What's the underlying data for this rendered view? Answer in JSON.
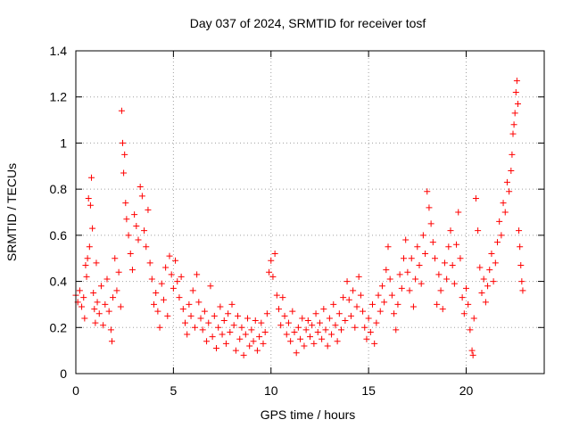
{
  "chart_data": {
    "type": "scatter",
    "title": "Day 037 of 2024, SRMTID for receiver tosf",
    "xlabel": "GPS time / hours",
    "ylabel": "SRMTID / TECUs",
    "xlim": [
      0,
      24
    ],
    "ylim": [
      0,
      1.4
    ],
    "grid": true,
    "marker": "+",
    "color": "#ff0000",
    "x_ticks": [
      0,
      5,
      10,
      15,
      20
    ],
    "x_tick_labels": [
      "0",
      "5",
      "10",
      "15",
      "20"
    ],
    "y_ticks": [
      0,
      0.2,
      0.4,
      0.6,
      0.8,
      1.0,
      1.2,
      1.4
    ],
    "y_tick_labels": [
      "0",
      "0.2",
      "0.4",
      "0.6",
      "0.8",
      "1",
      "1.2",
      "1.4"
    ],
    "series": [
      {
        "name": "SRMTID",
        "points": [
          [
            0.0,
            0.34
          ],
          [
            0.1,
            0.31
          ],
          [
            0.2,
            0.36
          ],
          [
            0.3,
            0.29
          ],
          [
            0.4,
            0.33
          ],
          [
            0.45,
            0.24
          ],
          [
            0.5,
            0.47
          ],
          [
            0.55,
            0.42
          ],
          [
            0.6,
            0.5
          ],
          [
            0.65,
            0.76
          ],
          [
            0.7,
            0.55
          ],
          [
            0.75,
            0.73
          ],
          [
            0.8,
            0.85
          ],
          [
            0.85,
            0.63
          ],
          [
            0.9,
            0.35
          ],
          [
            0.95,
            0.28
          ],
          [
            1.0,
            0.22
          ],
          [
            1.05,
            0.48
          ],
          [
            1.1,
            0.31
          ],
          [
            1.2,
            0.26
          ],
          [
            1.3,
            0.38
          ],
          [
            1.4,
            0.21
          ],
          [
            1.5,
            0.3
          ],
          [
            1.6,
            0.41
          ],
          [
            1.7,
            0.27
          ],
          [
            1.8,
            0.19
          ],
          [
            1.85,
            0.14
          ],
          [
            1.9,
            0.33
          ],
          [
            2.0,
            0.5
          ],
          [
            2.1,
            0.36
          ],
          [
            2.2,
            0.44
          ],
          [
            2.3,
            0.29
          ],
          [
            2.35,
            1.14
          ],
          [
            2.4,
            1.0
          ],
          [
            2.45,
            0.87
          ],
          [
            2.5,
            0.95
          ],
          [
            2.55,
            0.74
          ],
          [
            2.6,
            0.67
          ],
          [
            2.7,
            0.6
          ],
          [
            2.8,
            0.52
          ],
          [
            2.9,
            0.45
          ],
          [
            3.0,
            0.69
          ],
          [
            3.1,
            0.64
          ],
          [
            3.2,
            0.58
          ],
          [
            3.3,
            0.81
          ],
          [
            3.4,
            0.77
          ],
          [
            3.5,
            0.62
          ],
          [
            3.6,
            0.55
          ],
          [
            3.7,
            0.71
          ],
          [
            3.8,
            0.48
          ],
          [
            3.9,
            0.41
          ],
          [
            4.0,
            0.3
          ],
          [
            4.1,
            0.35
          ],
          [
            4.2,
            0.27
          ],
          [
            4.3,
            0.2
          ],
          [
            4.4,
            0.39
          ],
          [
            4.5,
            0.32
          ],
          [
            4.6,
            0.46
          ],
          [
            4.7,
            0.25
          ],
          [
            4.8,
            0.51
          ],
          [
            4.9,
            0.43
          ],
          [
            5.0,
            0.37
          ],
          [
            5.1,
            0.49
          ],
          [
            5.2,
            0.4
          ],
          [
            5.3,
            0.33
          ],
          [
            5.4,
            0.42
          ],
          [
            5.5,
            0.28
          ],
          [
            5.6,
            0.22
          ],
          [
            5.7,
            0.17
          ],
          [
            5.8,
            0.3
          ],
          [
            5.9,
            0.25
          ],
          [
            6.0,
            0.36
          ],
          [
            6.1,
            0.2
          ],
          [
            6.2,
            0.43
          ],
          [
            6.3,
            0.31
          ],
          [
            6.4,
            0.24
          ],
          [
            6.5,
            0.19
          ],
          [
            6.6,
            0.27
          ],
          [
            6.7,
            0.14
          ],
          [
            6.8,
            0.22
          ],
          [
            6.9,
            0.38
          ],
          [
            7.0,
            0.16
          ],
          [
            7.1,
            0.25
          ],
          [
            7.2,
            0.11
          ],
          [
            7.3,
            0.2
          ],
          [
            7.4,
            0.29
          ],
          [
            7.5,
            0.17
          ],
          [
            7.6,
            0.23
          ],
          [
            7.7,
            0.13
          ],
          [
            7.8,
            0.26
          ],
          [
            7.9,
            0.18
          ],
          [
            8.0,
            0.3
          ],
          [
            8.1,
            0.21
          ],
          [
            8.2,
            0.1
          ],
          [
            8.3,
            0.25
          ],
          [
            8.4,
            0.15
          ],
          [
            8.5,
            0.2
          ],
          [
            8.6,
            0.08
          ],
          [
            8.7,
            0.17
          ],
          [
            8.8,
            0.24
          ],
          [
            8.9,
            0.12
          ],
          [
            9.0,
            0.19
          ],
          [
            9.1,
            0.14
          ],
          [
            9.2,
            0.23
          ],
          [
            9.3,
            0.1
          ],
          [
            9.4,
            0.16
          ],
          [
            9.5,
            0.22
          ],
          [
            9.6,
            0.13
          ],
          [
            9.7,
            0.18
          ],
          [
            9.8,
            0.26
          ],
          [
            9.9,
            0.44
          ],
          [
            10.0,
            0.49
          ],
          [
            10.1,
            0.42
          ],
          [
            10.2,
            0.52
          ],
          [
            10.3,
            0.34
          ],
          [
            10.4,
            0.28
          ],
          [
            10.5,
            0.21
          ],
          [
            10.6,
            0.33
          ],
          [
            10.7,
            0.25
          ],
          [
            10.8,
            0.17
          ],
          [
            10.9,
            0.22
          ],
          [
            11.0,
            0.14
          ],
          [
            11.1,
            0.27
          ],
          [
            11.2,
            0.18
          ],
          [
            11.3,
            0.09
          ],
          [
            11.4,
            0.2
          ],
          [
            11.5,
            0.15
          ],
          [
            11.6,
            0.24
          ],
          [
            11.7,
            0.12
          ],
          [
            11.8,
            0.19
          ],
          [
            11.9,
            0.23
          ],
          [
            12.0,
            0.16
          ],
          [
            12.1,
            0.21
          ],
          [
            12.2,
            0.13
          ],
          [
            12.3,
            0.26
          ],
          [
            12.4,
            0.18
          ],
          [
            12.5,
            0.22
          ],
          [
            12.6,
            0.15
          ],
          [
            12.7,
            0.28
          ],
          [
            12.8,
            0.19
          ],
          [
            12.9,
            0.12
          ],
          [
            13.0,
            0.24
          ],
          [
            13.1,
            0.17
          ],
          [
            13.2,
            0.3
          ],
          [
            13.3,
            0.21
          ],
          [
            13.4,
            0.14
          ],
          [
            13.5,
            0.26
          ],
          [
            13.6,
            0.19
          ],
          [
            13.7,
            0.33
          ],
          [
            13.8,
            0.23
          ],
          [
            13.9,
            0.4
          ],
          [
            14.0,
            0.32
          ],
          [
            14.1,
            0.25
          ],
          [
            14.2,
            0.36
          ],
          [
            14.3,
            0.2
          ],
          [
            14.4,
            0.29
          ],
          [
            14.5,
            0.42
          ],
          [
            14.6,
            0.34
          ],
          [
            14.7,
            0.27
          ],
          [
            14.8,
            0.2
          ],
          [
            14.9,
            0.15
          ],
          [
            15.0,
            0.24
          ],
          [
            15.1,
            0.18
          ],
          [
            15.2,
            0.3
          ],
          [
            15.3,
            0.13
          ],
          [
            15.4,
            0.22
          ],
          [
            15.5,
            0.34
          ],
          [
            15.6,
            0.27
          ],
          [
            15.7,
            0.38
          ],
          [
            15.8,
            0.31
          ],
          [
            15.9,
            0.45
          ],
          [
            16.0,
            0.55
          ],
          [
            16.1,
            0.41
          ],
          [
            16.2,
            0.34
          ],
          [
            16.3,
            0.26
          ],
          [
            16.4,
            0.19
          ],
          [
            16.5,
            0.3
          ],
          [
            16.6,
            0.43
          ],
          [
            16.7,
            0.37
          ],
          [
            16.8,
            0.5
          ],
          [
            16.9,
            0.58
          ],
          [
            17.0,
            0.44
          ],
          [
            17.1,
            0.36
          ],
          [
            17.2,
            0.5
          ],
          [
            17.3,
            0.29
          ],
          [
            17.4,
            0.41
          ],
          [
            17.5,
            0.55
          ],
          [
            17.6,
            0.47
          ],
          [
            17.7,
            0.39
          ],
          [
            17.8,
            0.6
          ],
          [
            17.9,
            0.52
          ],
          [
            18.0,
            0.79
          ],
          [
            18.1,
            0.72
          ],
          [
            18.2,
            0.65
          ],
          [
            18.3,
            0.57
          ],
          [
            18.4,
            0.5
          ],
          [
            18.5,
            0.3
          ],
          [
            18.6,
            0.43
          ],
          [
            18.7,
            0.36
          ],
          [
            18.8,
            0.28
          ],
          [
            18.9,
            0.48
          ],
          [
            19.0,
            0.41
          ],
          [
            19.1,
            0.55
          ],
          [
            19.2,
            0.62
          ],
          [
            19.3,
            0.47
          ],
          [
            19.4,
            0.39
          ],
          [
            19.5,
            0.56
          ],
          [
            19.6,
            0.7
          ],
          [
            19.7,
            0.5
          ],
          [
            19.8,
            0.33
          ],
          [
            19.9,
            0.26
          ],
          [
            20.0,
            0.37
          ],
          [
            20.1,
            0.3
          ],
          [
            20.2,
            0.19
          ],
          [
            20.3,
            0.1
          ],
          [
            20.35,
            0.08
          ],
          [
            20.4,
            0.24
          ],
          [
            20.5,
            0.76
          ],
          [
            20.6,
            0.62
          ],
          [
            20.7,
            0.46
          ],
          [
            20.8,
            0.35
          ],
          [
            20.9,
            0.41
          ],
          [
            21.0,
            0.31
          ],
          [
            21.1,
            0.38
          ],
          [
            21.2,
            0.45
          ],
          [
            21.3,
            0.52
          ],
          [
            21.4,
            0.4
          ],
          [
            21.5,
            0.48
          ],
          [
            21.6,
            0.57
          ],
          [
            21.7,
            0.66
          ],
          [
            21.8,
            0.6
          ],
          [
            21.9,
            0.74
          ],
          [
            22.0,
            0.7
          ],
          [
            22.1,
            0.83
          ],
          [
            22.2,
            0.79
          ],
          [
            22.3,
            0.88
          ],
          [
            22.35,
            0.95
          ],
          [
            22.4,
            1.04
          ],
          [
            22.45,
            1.08
          ],
          [
            22.5,
            1.13
          ],
          [
            22.55,
            1.22
          ],
          [
            22.6,
            1.27
          ],
          [
            22.65,
            1.17
          ],
          [
            22.7,
            0.62
          ],
          [
            22.75,
            0.55
          ],
          [
            22.8,
            0.47
          ],
          [
            22.85,
            0.4
          ],
          [
            22.9,
            0.36
          ]
        ]
      }
    ]
  }
}
